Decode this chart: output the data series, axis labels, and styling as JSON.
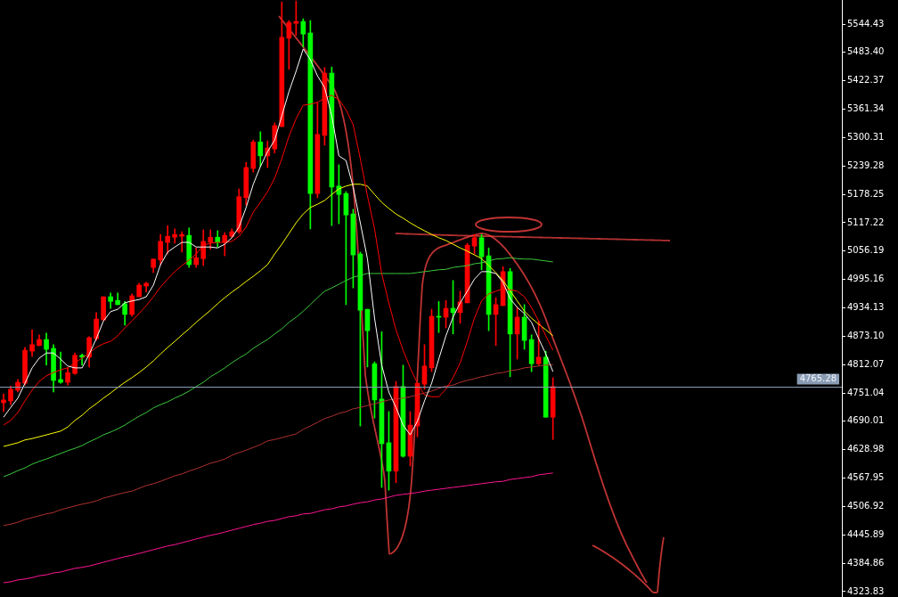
{
  "chart_data": {
    "type": "candlestick",
    "categories": [
      null,
      null,
      null,
      null,
      null,
      null,
      null,
      null,
      null,
      null,
      null,
      null,
      null,
      null,
      null,
      null,
      null,
      null,
      null,
      null,
      null,
      null,
      null,
      null,
      null,
      null,
      null,
      null,
      null,
      null,
      null,
      null,
      null,
      null,
      null,
      null,
      null,
      null,
      null,
      null,
      null,
      null,
      null,
      null,
      null,
      null,
      null,
      null,
      null,
      null,
      null,
      null,
      null,
      null,
      null,
      null,
      null,
      null,
      null,
      null,
      null,
      null,
      null,
      null,
      null,
      null,
      null,
      null,
      null,
      null,
      null,
      null,
      null,
      null,
      null,
      null,
      null,
      null,
      null,
      null,
      null,
      null,
      null,
      null,
      null,
      null,
      null,
      null,
      null,
      null,
      null,
      null,
      null,
      null,
      null,
      null,
      null,
      null,
      null,
      null,
      null,
      null,
      null,
      null,
      null,
      null,
      null,
      null,
      null,
      null,
      null,
      null,
      null,
      null,
      null,
      null,
      null,
      null
    ],
    "ohlc": [
      [
        4730,
        4749,
        4711,
        4736
      ],
      [
        4734,
        4766,
        4726,
        4759
      ],
      [
        4757,
        4780,
        4753,
        4774
      ],
      [
        4772,
        4849,
        4768,
        4843
      ],
      [
        4841,
        4887,
        4830,
        4855
      ],
      [
        4853,
        4876,
        4853,
        4866
      ],
      [
        4866,
        4880,
        4811,
        4845
      ],
      [
        4847,
        4855,
        4753,
        4778
      ],
      [
        4780,
        4839,
        4772,
        4774
      ],
      [
        4774,
        4805,
        4768,
        4795
      ],
      [
        4793,
        4837,
        4791,
        4832
      ],
      [
        4832,
        4835,
        4811,
        4828
      ],
      [
        4828,
        4872,
        4807,
        4870
      ],
      [
        4868,
        4924,
        4864,
        4910
      ],
      [
        4908,
        4958,
        4908,
        4958
      ],
      [
        4958,
        4966,
        4933,
        4948
      ],
      [
        4950,
        4966,
        4941,
        4941
      ],
      [
        4943,
        4948,
        4897,
        4920
      ],
      [
        4920,
        4964,
        4916,
        4960
      ],
      [
        4958,
        4987,
        4958,
        4983
      ],
      [
        4981,
        4989,
        4968,
        4987
      ],
      [
        5021,
        5039,
        5010,
        5039
      ],
      [
        5037,
        5092,
        5027,
        5077
      ],
      [
        5075,
        5111,
        5050,
        5088
      ],
      [
        5086,
        5104,
        5073,
        5092
      ],
      [
        5088,
        5098,
        5054,
        5092
      ],
      [
        5090,
        5106,
        5021,
        5027
      ],
      [
        5027,
        5063,
        5021,
        5042
      ],
      [
        5040,
        5102,
        5025,
        5077
      ],
      [
        5075,
        5102,
        5060,
        5086
      ],
      [
        5086,
        5100,
        5065,
        5075
      ],
      [
        5075,
        5096,
        5046,
        5090
      ],
      [
        5088,
        5104,
        5085,
        5098
      ],
      [
        5098,
        5190,
        5094,
        5173
      ],
      [
        5171,
        5247,
        5155,
        5236
      ],
      [
        5234,
        5295,
        5226,
        5291
      ],
      [
        5291,
        5313,
        5238,
        5261
      ],
      [
        5261,
        5293,
        5236,
        5278
      ],
      [
        5276,
        5332,
        5267,
        5326
      ],
      [
        5324,
        5592,
        5324,
        5516
      ],
      [
        5514,
        5552,
        5447,
        5548
      ],
      [
        5546,
        5594,
        5520,
        5550
      ],
      [
        5550,
        5556,
        5495,
        5523
      ],
      [
        5525,
        5552,
        5104,
        5180
      ],
      [
        5180,
        5376,
        5171,
        5307
      ],
      [
        5305,
        5451,
        5284,
        5439
      ],
      [
        5439,
        5452,
        5111,
        5194
      ],
      [
        5196,
        5242,
        5115,
        5178
      ],
      [
        5180,
        5184,
        4941,
        5134
      ],
      [
        5136,
        5146,
        4977,
        5048
      ],
      [
        5050,
        5054,
        4680,
        4929
      ],
      [
        4931,
        4931,
        4807,
        4885
      ],
      [
        4814,
        4818,
        4697,
        4736
      ],
      [
        4738,
        4883,
        4548,
        4642
      ],
      [
        4644,
        4711,
        4542,
        4583
      ],
      [
        4583,
        4776,
        4558,
        4765
      ],
      [
        4765,
        4811,
        4613,
        4615
      ],
      [
        4615,
        4711,
        4594,
        4682
      ],
      [
        4680,
        4772,
        4657,
        4772
      ],
      [
        4770,
        4855,
        4759,
        4809
      ],
      [
        4805,
        4931,
        4797,
        4916
      ],
      [
        4916,
        4948,
        4881,
        4914
      ],
      [
        4914,
        4950,
        4891,
        4933
      ],
      [
        4933,
        4993,
        4878,
        4924
      ],
      [
        4924,
        4970,
        4901,
        4947
      ],
      [
        4945,
        5073,
        4945,
        5069
      ],
      [
        5067,
        5092,
        5050,
        5085
      ],
      [
        5085,
        5092,
        5016,
        5044
      ],
      [
        5046,
        5063,
        4885,
        4920
      ],
      [
        4920,
        4956,
        4853,
        4941
      ],
      [
        4939,
        5023,
        4939,
        5012
      ],
      [
        5012,
        5019,
        4786,
        4878
      ],
      [
        4878,
        4935,
        4824,
        4914
      ],
      [
        4914,
        4941,
        4845,
        4864
      ],
      [
        4866,
        4876,
        4797,
        4814
      ],
      [
        4814,
        4906,
        4811,
        4828
      ],
      [
        4828,
        4841,
        4699,
        4699
      ],
      [
        4699,
        4784,
        4651,
        4765
      ],
      null,
      null,
      null,
      null,
      null,
      null,
      null,
      null,
      null,
      null,
      null,
      null,
      null,
      null,
      null,
      null,
      null,
      null,
      null,
      null,
      null,
      null,
      null,
      null,
      null,
      null,
      null,
      null,
      null,
      null,
      null,
      null,
      null,
      null,
      null,
      null,
      null,
      null,
      null,
      null
    ],
    "colors": [
      "#ff0000",
      "#ff0000",
      "#ff0000",
      "#ff0000",
      "#ff0000",
      "#ff0000",
      "#00ff00",
      "#00ff00",
      "#00ff00",
      "#ff0000",
      "#ff0000",
      "#00ff00",
      "#ff0000",
      "#ff0000",
      "#ff0000",
      "#00ff00",
      "#00ff00",
      "#00ff00",
      "#ff0000",
      "#ff0000",
      "#ff0000",
      "#ff0000",
      "#ff0000",
      "#ff0000",
      "#ff0000",
      "#ff0000",
      "#00ff00",
      "#ff0000",
      "#ff0000",
      "#ff0000",
      "#00ff00",
      "#ff0000",
      "#ff0000",
      "#ff0000",
      "#ff0000",
      "#ff0000",
      "#00ff00",
      "#ff0000",
      "#ff0000",
      "#ff0000",
      "#ff0000",
      "#ff0000",
      "#00ff00",
      "#00ff00",
      "#ff0000",
      "#ff0000",
      "#00ff00",
      "#00ff00",
      "#00ff00",
      "#00ff00",
      "#00ff00",
      "#00ff00",
      "#00ff00",
      "#00ff00",
      "#00ff00",
      "#ff0000",
      "#00ff00",
      "#ff0000",
      "#ff0000",
      "#ff0000",
      "#ff0000",
      "#00ff00",
      "#ff0000",
      "#00ff00",
      "#ff0000",
      "#ff0000",
      "#ff0000",
      "#00ff00",
      "#00ff00",
      "#ff0000",
      "#ff0000",
      "#00ff00",
      "#ff0000",
      "#00ff00",
      "#00ff00",
      "#ff0000",
      "#00ff00",
      "#ff0000",
      null,
      null,
      null,
      null,
      null,
      null,
      null,
      null,
      null,
      null,
      null,
      null,
      null,
      null,
      null,
      null,
      null,
      null,
      null,
      null,
      null,
      null,
      null,
      null,
      null,
      null,
      null,
      null,
      null,
      null,
      null,
      null,
      null,
      null,
      null,
      null,
      null,
      null,
      null,
      null
    ],
    "series": [
      {
        "type": "line",
        "color": "#ffffff",
        "values": [
          4699,
          4720,
          4740,
          4772,
          4805,
          4826,
          4837,
          4837,
          4824,
          4809,
          4805,
          4805,
          4834,
          4868,
          4906,
          4926,
          4931,
          4945,
          4949,
          4952,
          4958,
          4983,
          5027,
          5054,
          5065,
          5075,
          5075,
          5065,
          5065,
          5065,
          5063,
          5071,
          5085,
          5108,
          5150,
          5200,
          5238,
          5270,
          5295,
          5347,
          5399,
          5443,
          5491,
          5468,
          5433,
          5408,
          5347,
          5261,
          5251,
          5194,
          5117,
          5040,
          4912,
          4811,
          4753,
          4720,
          4682,
          4661,
          4690,
          4734,
          4772,
          4824,
          4874,
          4914,
          4945,
          4970,
          4996,
          5012,
          5012,
          5008,
          4989,
          4954,
          4935,
          4922,
          4903,
          4868,
          4835,
          4797,
          null,
          null,
          null,
          null,
          null,
          null,
          null,
          null,
          null,
          null,
          null,
          null,
          null,
          null,
          null,
          null,
          null,
          null,
          null,
          null,
          null,
          null,
          null,
          null,
          null,
          null,
          null,
          null,
          null,
          null,
          null,
          null,
          null,
          null,
          null,
          null,
          null,
          null,
          null,
          null
        ]
      },
      {
        "type": "line",
        "color": "#ff0000",
        "values": [
          4682,
          4692,
          4709,
          4734,
          4757,
          4776,
          4788,
          4795,
          4801,
          4805,
          4816,
          4826,
          4837,
          4849,
          4857,
          4862,
          4874,
          4891,
          4906,
          4922,
          4939,
          4958,
          4979,
          4996,
          5012,
          5025,
          5037,
          5050,
          5069,
          5073,
          5075,
          5075,
          5077,
          5088,
          5108,
          5140,
          5161,
          5184,
          5213,
          5255,
          5303,
          5341,
          5370,
          5372,
          5376,
          5385,
          5391,
          5382,
          5360,
          5328,
          5255,
          5175,
          5104,
          5008,
          4945,
          4887,
          4843,
          4805,
          4772,
          4747,
          4743,
          4743,
          4759,
          4784,
          4816,
          4862,
          4912,
          4949,
          4964,
          4970,
          4975,
          4973,
          4970,
          4958,
          4935,
          4906,
          4874,
          4843,
          null,
          null,
          null,
          null,
          null,
          null,
          null,
          null,
          null,
          null,
          null,
          null,
          null,
          null,
          null,
          null,
          null,
          null,
          null,
          null,
          null,
          null,
          null,
          null,
          null,
          null,
          null,
          null,
          null,
          null,
          null,
          null,
          null,
          null,
          null,
          null,
          null,
          null,
          null,
          null
        ]
      },
      {
        "type": "line",
        "color": "#ffff00",
        "values": [
          4636,
          4640,
          4644,
          4650,
          4653,
          4657,
          4661,
          4665,
          4669,
          4678,
          4692,
          4703,
          4717,
          4728,
          4740,
          4751,
          4763,
          4774,
          4784,
          4795,
          4807,
          4820,
          4835,
          4849,
          4862,
          4876,
          4889,
          4903,
          4916,
          4929,
          4943,
          4956,
          4968,
          4979,
          4991,
          5002,
          5014,
          5027,
          5050,
          5071,
          5094,
          5117,
          5136,
          5150,
          5157,
          5165,
          5178,
          5190,
          5196,
          5200,
          5200,
          5196,
          5178,
          5161,
          5148,
          5136,
          5127,
          5117,
          5108,
          5100,
          5092,
          5085,
          5079,
          5071,
          5063,
          5056,
          5048,
          5040,
          5025,
          5010,
          4993,
          4971,
          4949,
          4927,
          4912,
          4899,
          4887,
          4874,
          null,
          null,
          null,
          null,
          null,
          null,
          null,
          null,
          null,
          null,
          null,
          null,
          null,
          null,
          null,
          null,
          null,
          null,
          null,
          null,
          null,
          null,
          null,
          null,
          null,
          null,
          null,
          null,
          null,
          null,
          null,
          null,
          null,
          null,
          null,
          null,
          null,
          null,
          null,
          null
        ]
      },
      {
        "type": "line",
        "color": "#3cc83c",
        "values": [
          4571,
          4577,
          4584,
          4590,
          4598,
          4604,
          4609,
          4615,
          4621,
          4627,
          4632,
          4638,
          4646,
          4653,
          4661,
          4667,
          4674,
          4682,
          4692,
          4701,
          4709,
          4719,
          4726,
          4732,
          4740,
          4747,
          4755,
          4765,
          4774,
          4786,
          4795,
          4805,
          4816,
          4826,
          4835,
          4847,
          4857,
          4866,
          4878,
          4889,
          4903,
          4914,
          4927,
          4941,
          4956,
          4970,
          4977,
          4985,
          4993,
          5000,
          5004,
          5008,
          5008,
          5008,
          5008,
          5008,
          5008,
          5008,
          5010,
          5012,
          5014,
          5016,
          5017,
          5021,
          5023,
          5025,
          5029,
          5031,
          5035,
          5039,
          5040,
          5042,
          5040,
          5039,
          5039,
          5037,
          5035,
          5033,
          null,
          null,
          null,
          null,
          null,
          null,
          null,
          null,
          null,
          null,
          null,
          null,
          null,
          null,
          null,
          null,
          null,
          null,
          null,
          null,
          null,
          null,
          null,
          null,
          null,
          null,
          null,
          null,
          null,
          null,
          null,
          null,
          null,
          null,
          null,
          null,
          null,
          null,
          null,
          null
        ]
      },
      {
        "type": "line",
        "color": "#b03030",
        "values": [
          4466,
          4469,
          4473,
          4479,
          4483,
          4487,
          4491,
          4494,
          4500,
          4504,
          4508,
          4512,
          4515,
          4519,
          4525,
          4529,
          4533,
          4537,
          4540,
          4546,
          4552,
          4556,
          4561,
          4567,
          4573,
          4577,
          4583,
          4588,
          4594,
          4600,
          4604,
          4609,
          4617,
          4623,
          4628,
          4634,
          4640,
          4648,
          4651,
          4655,
          4659,
          4663,
          4673,
          4680,
          4688,
          4696,
          4701,
          4707,
          4711,
          4717,
          4720,
          4724,
          4728,
          4732,
          4736,
          4738,
          4740,
          4743,
          4747,
          4751,
          4755,
          4761,
          4766,
          4768,
          4774,
          4778,
          4782,
          4786,
          4789,
          4793,
          4795,
          4799,
          4801,
          4805,
          4807,
          4809,
          4811,
          4812,
          null,
          null,
          null,
          null,
          null,
          null,
          null,
          null,
          null,
          null,
          null,
          null,
          null,
          null,
          null,
          null,
          null,
          null,
          null,
          null,
          null,
          null,
          null,
          null,
          null,
          null,
          null,
          null,
          null,
          null,
          null,
          null,
          null,
          null,
          null,
          null,
          null,
          null,
          null,
          null
        ]
      },
      {
        "type": "line",
        "color": "#ff1493",
        "values": [
          4343,
          4345,
          4349,
          4351,
          4354,
          4358,
          4360,
          4364,
          4366,
          4370,
          4374,
          4376,
          4379,
          4383,
          4387,
          4391,
          4395,
          4399,
          4402,
          4406,
          4410,
          4414,
          4418,
          4422,
          4425,
          4429,
          4433,
          4437,
          4441,
          4445,
          4448,
          4452,
          4456,
          4460,
          4464,
          4468,
          4471,
          4475,
          4477,
          4481,
          4485,
          4487,
          4491,
          4492,
          4496,
          4500,
          4502,
          4506,
          4508,
          4512,
          4515,
          4517,
          4521,
          4523,
          4527,
          4531,
          4533,
          4535,
          4537,
          4540,
          4542,
          4544,
          4546,
          4548,
          4550,
          4552,
          4554,
          4556,
          4558,
          4560,
          4561,
          4565,
          4567,
          4569,
          4571,
          4575,
          4577,
          4579,
          null,
          null,
          null,
          null,
          null,
          null,
          null,
          null,
          null,
          null,
          null,
          null,
          null,
          null,
          null,
          null,
          null,
          null,
          null,
          null,
          null,
          null,
          null,
          null,
          null,
          null,
          null,
          null,
          null,
          null,
          null,
          null,
          null,
          null,
          null,
          null,
          null,
          null,
          null,
          null
        ]
      }
    ],
    "ylim": [
      4312.3,
      5596.2
    ],
    "yticks": [
      5544.43,
      {
        "value": 5483.4,
        "label": "5483.40"
      },
      5422.37,
      5361.34,
      5300.31,
      5239.28,
      5178.25,
      5117.22,
      5056.19,
      4995.16,
      4934.13,
      {
        "value": 4873.1,
        "label": "4873.10"
      },
      4812.07,
      4751.04,
      4690.01,
      4628.98,
      4567.95,
      4506.92,
      4445.89,
      4384.86,
      4323.83
    ],
    "ref_lines": [
      {
        "axis": "y",
        "value": 4765.28,
        "label": "4765.28",
        "color": "#8a9cb4"
      }
    ],
    "grid": false,
    "legend": false
  }
}
